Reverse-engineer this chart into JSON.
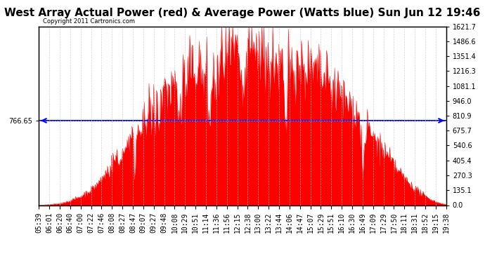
{
  "title": "West Array Actual Power (red) & Average Power (Watts blue) Sun Jun 12 19:46",
  "copyright": "Copyright 2011 Cartronics.com",
  "average_power": 766.65,
  "y_max": 1621.7,
  "y_min": 0.0,
  "y_ticks": [
    0.0,
    135.1,
    270.3,
    405.4,
    540.6,
    675.7,
    810.9,
    946.0,
    1081.1,
    1216.3,
    1351.4,
    1486.6,
    1621.7
  ],
  "x_labels": [
    "05:39",
    "06:01",
    "06:20",
    "06:40",
    "07:00",
    "07:22",
    "07:46",
    "08:08",
    "08:27",
    "08:47",
    "09:07",
    "09:27",
    "09:48",
    "10:08",
    "10:29",
    "10:51",
    "11:14",
    "11:36",
    "11:56",
    "12:15",
    "12:38",
    "13:00",
    "13:22",
    "13:44",
    "14:06",
    "14:47",
    "15:07",
    "15:29",
    "15:51",
    "16:10",
    "16:30",
    "16:49",
    "17:09",
    "17:29",
    "17:50",
    "18:11",
    "18:31",
    "18:52",
    "19:15",
    "19:38"
  ],
  "fill_color": "#FF0000",
  "line_color": "#FF0000",
  "avg_line_color": "#0000FF",
  "background_color": "#FFFFFF",
  "grid_color": "#CCCCCC",
  "title_fontsize": 11,
  "tick_fontsize": 7,
  "power_profile": [
    0,
    5,
    15,
    40,
    80,
    140,
    230,
    380,
    520,
    650,
    780,
    900,
    1020,
    1100,
    1180,
    1240,
    1280,
    1320,
    1350,
    1370,
    1390,
    1380,
    1360,
    1340,
    1310,
    1270,
    1220,
    1160,
    1080,
    980,
    880,
    760,
    620,
    480,
    360,
    240,
    150,
    80,
    30,
    5
  ],
  "noise_factor": 0.15,
  "left_avg_label": "766.65",
  "right_avg_label": "766.65"
}
